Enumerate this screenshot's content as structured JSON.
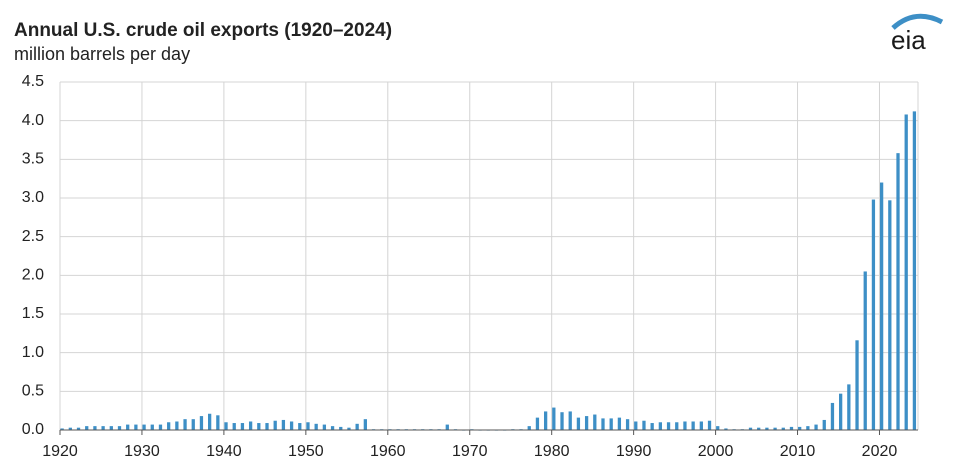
{
  "chart_data": {
    "type": "bar",
    "title": "Annual U.S. crude oil exports (1920–2024)",
    "subtitle": "million barrels per day",
    "logo": "eia",
    "color": "#3d8fc6",
    "grid": true,
    "x": [
      1920,
      1921,
      1922,
      1923,
      1924,
      1925,
      1926,
      1927,
      1928,
      1929,
      1930,
      1931,
      1932,
      1933,
      1934,
      1935,
      1936,
      1937,
      1938,
      1939,
      1940,
      1941,
      1942,
      1943,
      1944,
      1945,
      1946,
      1947,
      1948,
      1949,
      1950,
      1951,
      1952,
      1953,
      1954,
      1955,
      1956,
      1957,
      1958,
      1959,
      1960,
      1961,
      1962,
      1963,
      1964,
      1965,
      1966,
      1967,
      1968,
      1969,
      1970,
      1971,
      1972,
      1973,
      1974,
      1975,
      1976,
      1977,
      1978,
      1979,
      1980,
      1981,
      1982,
      1983,
      1984,
      1985,
      1986,
      1987,
      1988,
      1989,
      1990,
      1991,
      1992,
      1993,
      1994,
      1995,
      1996,
      1997,
      1998,
      1999,
      2000,
      2001,
      2002,
      2003,
      2004,
      2005,
      2006,
      2007,
      2008,
      2009,
      2010,
      2011,
      2012,
      2013,
      2014,
      2015,
      2016,
      2017,
      2018,
      2019,
      2020,
      2021,
      2022,
      2023,
      2024
    ],
    "values": [
      0.02,
      0.03,
      0.03,
      0.05,
      0.05,
      0.05,
      0.05,
      0.05,
      0.07,
      0.07,
      0.07,
      0.07,
      0.07,
      0.1,
      0.11,
      0.14,
      0.14,
      0.18,
      0.21,
      0.19,
      0.1,
      0.09,
      0.09,
      0.11,
      0.09,
      0.09,
      0.12,
      0.13,
      0.11,
      0.09,
      0.1,
      0.08,
      0.07,
      0.05,
      0.04,
      0.03,
      0.08,
      0.14,
      0.01,
      0.01,
      0.01,
      0.01,
      0.01,
      0.01,
      0.01,
      0.01,
      0.01,
      0.07,
      0.01,
      0,
      0.01,
      0,
      0,
      0,
      0,
      0.01,
      0.01,
      0.05,
      0.16,
      0.24,
      0.29,
      0.23,
      0.24,
      0.16,
      0.18,
      0.2,
      0.15,
      0.15,
      0.16,
      0.14,
      0.11,
      0.12,
      0.09,
      0.1,
      0.1,
      0.1,
      0.11,
      0.11,
      0.11,
      0.12,
      0.05,
      0.02,
      0.01,
      0.01,
      0.03,
      0.03,
      0.03,
      0.03,
      0.03,
      0.04,
      0.04,
      0.05,
      0.07,
      0.13,
      0.35,
      0.47,
      0.59,
      1.16,
      2.05,
      2.98,
      3.2,
      2.97,
      3.58,
      4.08,
      4.12
    ],
    "xlim": [
      1920,
      2024.7
    ],
    "xticks": [
      1920,
      1930,
      1940,
      1950,
      1960,
      1970,
      1980,
      1990,
      2000,
      2010,
      2020
    ],
    "ylim": [
      0,
      4.5
    ],
    "yticks": [
      {
        "value": 0,
        "label": "0.0"
      },
      {
        "value": 0.5,
        "label": "0.5"
      },
      {
        "value": 1,
        "label": "1.0"
      },
      {
        "value": 1.5,
        "label": "1.5"
      },
      {
        "value": 2,
        "label": "2.0"
      },
      {
        "value": 2.5,
        "label": "2.5"
      },
      {
        "value": 3,
        "label": "3.0"
      },
      {
        "value": 3.5,
        "label": "3.5"
      },
      {
        "value": 4,
        "label": "4.0"
      },
      {
        "value": 4.5,
        "label": "4.5"
      }
    ]
  }
}
